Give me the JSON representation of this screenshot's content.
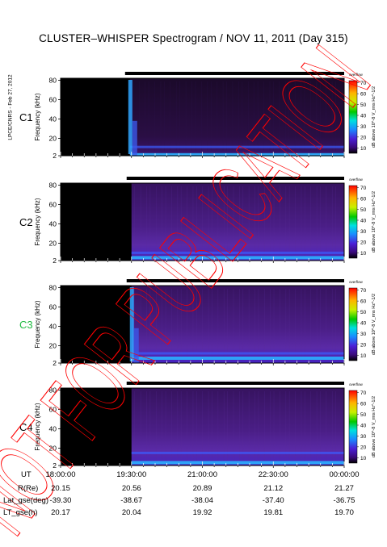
{
  "title": "CLUSTER–WHISPER Spectrogram / NOV 11, 2011 (Day 315)",
  "stamp": "LPCE/CNRS - Feb 27, 2012",
  "watermark": "NOT FOR PUBLICATION",
  "colors": {
    "background": "#000000",
    "spectrum_base": "#4a1a86",
    "bar": "#000000",
    "watermark": "#ff0000",
    "c3_label": "#22bb44"
  },
  "chart_data": {
    "type": "heatmap",
    "panels": [
      {
        "name": "C1",
        "ylabel": "Frequency (kHz)",
        "yticks": [
          2,
          20,
          40,
          60,
          80
        ],
        "ylim": [
          2,
          82
        ],
        "data_start": "19:28",
        "onset_burst": true,
        "bright_lines": [
          {
            "freq": 3,
            "level": "high"
          },
          {
            "freq": 11,
            "level": "medium"
          }
        ],
        "colorbar_label": "dB above 10^-8 V_rms Hz^-1/2",
        "colorbar_ticks": [
          10,
          20,
          30,
          40,
          50,
          60,
          70
        ],
        "colorbar_unit": "overflow"
      },
      {
        "name": "C2",
        "ylabel": "Frequency (kHz)",
        "yticks": [
          2,
          20,
          40,
          60,
          80
        ],
        "ylim": [
          2,
          82
        ],
        "data_start": "19:30",
        "onset_burst": false,
        "bright_lines": [
          {
            "freq": 5,
            "level": "high"
          },
          {
            "freq": 10,
            "level": "medium"
          }
        ],
        "colorbar_label": "dB above 10^-8 V_rms Hz^-1/2",
        "colorbar_ticks": [
          10,
          20,
          30,
          40,
          50,
          60,
          70
        ],
        "colorbar_unit": "overflow"
      },
      {
        "name": "C3",
        "ylabel": "Frequency (kHz)",
        "yticks": [
          2,
          20,
          40,
          60,
          80
        ],
        "ylim": [
          2,
          82
        ],
        "data_start": "19:30",
        "onset_burst": true,
        "bright_lines": [
          {
            "freq": 7,
            "level": "high"
          },
          {
            "freq": 12,
            "level": "medium"
          }
        ],
        "colorbar_label": "dB above 10^-8 V_rms Hz^-1/2",
        "colorbar_ticks": [
          10,
          20,
          30,
          40,
          50,
          60,
          70
        ],
        "colorbar_unit": "overflow"
      },
      {
        "name": "C4",
        "ylabel": "Frequency (kHz)",
        "yticks": [
          2,
          20,
          40,
          60,
          80
        ],
        "ylim": [
          2,
          82
        ],
        "data_start": "19:30",
        "onset_burst": false,
        "bright_lines": [
          {
            "freq": 5,
            "level": "high"
          },
          {
            "freq": 15,
            "level": "medium"
          }
        ],
        "colorbar_label": "dB above 10^-8 V_rms Hz^-1/2",
        "colorbar_ticks": [
          10,
          20,
          30,
          40,
          50,
          60,
          70
        ],
        "colorbar_unit": "overflow"
      }
    ],
    "x_range": [
      "18:00",
      "24:00"
    ]
  },
  "ephemeris": {
    "labels": [
      "UT",
      "R(Re)",
      "Lat_gse(deg)",
      "LT_gse(h)"
    ],
    "columns": [
      {
        "ut": "18:00:00",
        "r": "20.15",
        "lat": "-39.30",
        "lt": "20.17"
      },
      {
        "ut": "19:30:00",
        "r": "20.56",
        "lat": "-38.67",
        "lt": "20.04"
      },
      {
        "ut": "21:00:00",
        "r": "20.89",
        "lat": "-38.04",
        "lt": "19.92"
      },
      {
        "ut": "22:30:00",
        "r": "21.12",
        "lat": "-37.40",
        "lt": "19.81"
      },
      {
        "ut": "00:00:00",
        "r": "21.27",
        "lat": "-36.75",
        "lt": "19.70"
      }
    ]
  }
}
